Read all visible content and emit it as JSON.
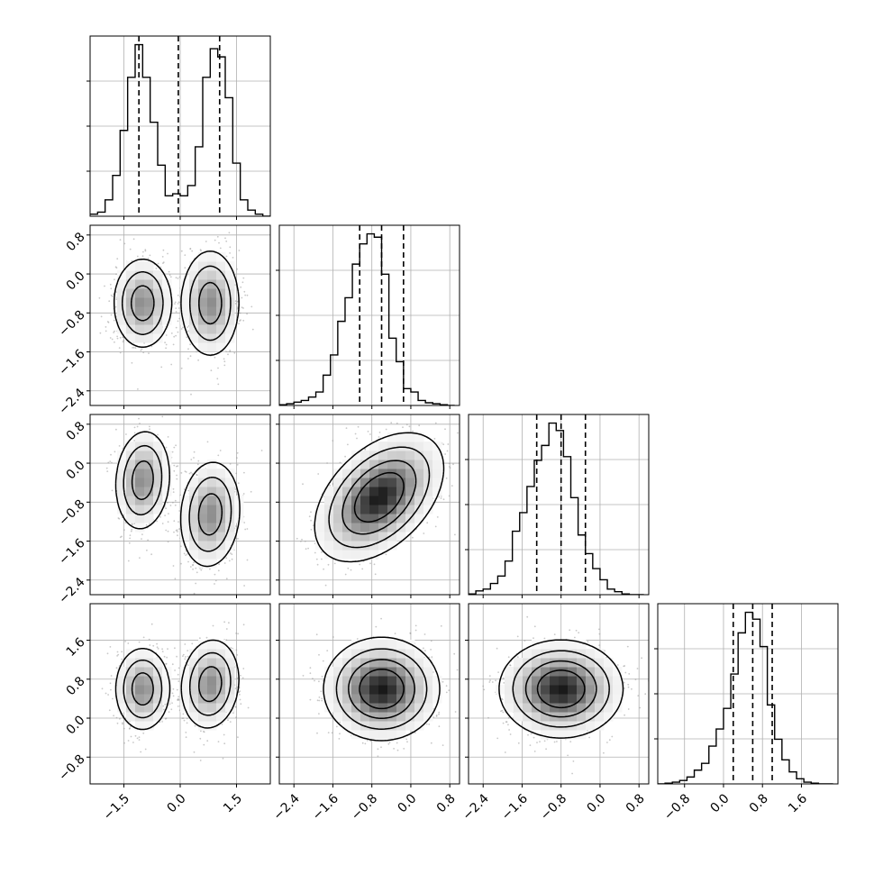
{
  "chart_data": {
    "type": "corner",
    "parameters": 4,
    "axes": [
      {
        "index": 0,
        "range": [
          -2.4,
          2.4
        ],
        "x_tick_labels": [
          {
            "value": -1.5,
            "label": "−1.5"
          },
          {
            "value": 0.0,
            "label": "0.0"
          },
          {
            "value": 1.5,
            "label": "1.5"
          }
        ],
        "quantiles": [
          -1.1,
          -0.05,
          1.05
        ],
        "histogram": {
          "edges": [
            -2.4,
            -2.2,
            -2.0,
            -1.8,
            -1.6,
            -1.4,
            -1.2,
            -1.0,
            -0.8,
            -0.6,
            -0.4,
            -0.2,
            0.0,
            0.2,
            0.4,
            0.6,
            0.8,
            1.0,
            1.2,
            1.4,
            1.6,
            1.8,
            2.0,
            2.2,
            2.4
          ],
          "counts": [
            0.05,
            0.1,
            0.4,
            1.0,
            2.1,
            3.4,
            4.2,
            3.4,
            2.3,
            1.25,
            0.5,
            0.55,
            0.5,
            0.75,
            1.7,
            3.4,
            4.1,
            3.9,
            2.9,
            1.3,
            0.4,
            0.15,
            0.05,
            0.0
          ]
        },
        "modes": [
          {
            "center": -1.0
          },
          {
            "center": 0.8
          }
        ]
      },
      {
        "index": 1,
        "range": [
          -2.7,
          1.0
        ],
        "y_tick_labels": [
          {
            "value": 0.8,
            "label": "0.8"
          },
          {
            "value": 0.0,
            "label": "0.0"
          },
          {
            "value": -0.8,
            "label": "−0.8"
          },
          {
            "value": -1.6,
            "label": "−1.6"
          },
          {
            "value": -2.4,
            "label": "−2.4"
          }
        ],
        "x_tick_labels": [
          {
            "value": -2.4,
            "label": "−2.4"
          },
          {
            "value": -1.6,
            "label": "−1.6"
          },
          {
            "value": -0.8,
            "label": "−0.8"
          },
          {
            "value": 0.0,
            "label": "0.0"
          },
          {
            "value": 0.8,
            "label": "0.8"
          }
        ],
        "quantiles": [
          -1.05,
          -0.6,
          -0.15
        ],
        "histogram": {
          "edges": [
            -2.7,
            -2.55,
            -2.4,
            -2.25,
            -2.1,
            -1.95,
            -1.8,
            -1.65,
            -1.5,
            -1.35,
            -1.2,
            -1.05,
            -0.9,
            -0.75,
            -0.6,
            -0.45,
            -0.3,
            -0.15,
            0.0,
            0.15,
            0.3,
            0.45,
            0.6,
            0.75,
            0.9
          ],
          "counts": [
            0.02,
            0.05,
            0.1,
            0.15,
            0.25,
            0.4,
            0.9,
            1.5,
            2.5,
            3.2,
            4.2,
            4.8,
            5.1,
            5.0,
            3.9,
            2.0,
            1.3,
            0.5,
            0.4,
            0.15,
            0.08,
            0.05,
            0.02,
            0.0
          ]
        }
      },
      {
        "index": 2,
        "range": [
          -2.7,
          1.0
        ],
        "y_tick_labels": [
          {
            "value": 0.8,
            "label": "0.8"
          },
          {
            "value": 0.0,
            "label": "0.0"
          },
          {
            "value": -0.8,
            "label": "−0.8"
          },
          {
            "value": -1.6,
            "label": "−1.6"
          },
          {
            "value": -2.4,
            "label": "−2.4"
          }
        ],
        "x_tick_labels": [
          {
            "value": -2.4,
            "label": "−2.4"
          },
          {
            "value": -1.6,
            "label": "−1.6"
          },
          {
            "value": -0.8,
            "label": "−0.8"
          },
          {
            "value": 0.0,
            "label": "0.0"
          },
          {
            "value": 0.8,
            "label": "0.8"
          }
        ],
        "quantiles": [
          -1.3,
          -0.8,
          -0.3
        ],
        "histogram": {
          "edges": [
            -2.7,
            -2.55,
            -2.4,
            -2.25,
            -2.1,
            -1.95,
            -1.8,
            -1.65,
            -1.5,
            -1.35,
            -1.2,
            -1.05,
            -0.9,
            -0.75,
            -0.6,
            -0.45,
            -0.3,
            -0.15,
            0.0,
            0.15,
            0.3,
            0.45,
            0.6,
            0.75,
            0.9
          ],
          "counts": [
            0.02,
            0.1,
            0.15,
            0.3,
            0.5,
            0.9,
            1.7,
            2.2,
            2.9,
            3.6,
            4.0,
            4.6,
            4.4,
            3.7,
            2.6,
            1.6,
            1.1,
            0.7,
            0.4,
            0.15,
            0.08,
            0.02,
            0.0,
            0.0
          ]
        }
      },
      {
        "index": 3,
        "range": [
          -1.35,
          2.35
        ],
        "y_tick_labels": [
          {
            "value": 1.6,
            "label": "1.6"
          },
          {
            "value": 0.8,
            "label": "0.8"
          },
          {
            "value": 0.0,
            "label": "0.0"
          },
          {
            "value": -0.8,
            "label": "−0.8"
          }
        ],
        "x_tick_labels": [
          {
            "value": -0.8,
            "label": "−0.8"
          },
          {
            "value": 0.0,
            "label": "0.0"
          },
          {
            "value": 0.8,
            "label": "0.8"
          },
          {
            "value": 1.6,
            "label": "1.6"
          }
        ],
        "quantiles": [
          0.2,
          0.6,
          1.0
        ],
        "histogram": {
          "edges": [
            -1.35,
            -1.2,
            -1.05,
            -0.9,
            -0.75,
            -0.6,
            -0.45,
            -0.3,
            -0.15,
            0.0,
            0.15,
            0.3,
            0.45,
            0.6,
            0.75,
            0.9,
            1.05,
            1.2,
            1.35,
            1.5,
            1.65,
            1.8,
            1.95,
            2.1,
            2.25
          ],
          "counts": [
            0.0,
            0.02,
            0.05,
            0.1,
            0.2,
            0.4,
            0.6,
            1.1,
            1.6,
            2.2,
            3.2,
            4.4,
            5.0,
            4.8,
            4.0,
            2.3,
            1.3,
            0.7,
            0.35,
            0.15,
            0.05,
            0.02,
            0.0,
            0.0
          ]
        }
      }
    ],
    "joint_panels": [
      {
        "row": 1,
        "col": 0,
        "modes": [
          {
            "mx": -1.0,
            "my": -0.6,
            "sx": 0.32,
            "sy": 0.38,
            "rho": 0.0
          },
          {
            "mx": 0.8,
            "my": -0.6,
            "sx": 0.32,
            "sy": 0.45,
            "rho": 0.0
          }
        ]
      },
      {
        "row": 2,
        "col": 0,
        "modes": [
          {
            "mx": -1.0,
            "my": -0.35,
            "sx": 0.3,
            "sy": 0.42,
            "rho": 0.1
          },
          {
            "mx": 0.8,
            "my": -1.05,
            "sx": 0.33,
            "sy": 0.45,
            "rho": 0.1
          }
        ]
      },
      {
        "row": 3,
        "col": 0,
        "modes": [
          {
            "mx": -1.0,
            "my": 0.6,
            "sx": 0.3,
            "sy": 0.35,
            "rho": 0.0
          },
          {
            "mx": 0.8,
            "my": 0.7,
            "sx": 0.32,
            "sy": 0.38,
            "rho": 0.1
          }
        ]
      },
      {
        "row": 2,
        "col": 1,
        "modes": [
          {
            "mx": -0.65,
            "my": -0.7,
            "sx": 0.5,
            "sy": 0.5,
            "rho": 0.45
          }
        ]
      },
      {
        "row": 3,
        "col": 1,
        "modes": [
          {
            "mx": -0.6,
            "my": 0.6,
            "sx": 0.45,
            "sy": 0.4,
            "rho": 0.0
          }
        ]
      },
      {
        "row": 3,
        "col": 2,
        "modes": [
          {
            "mx": -0.8,
            "my": 0.6,
            "sx": 0.48,
            "sy": 0.38,
            "rho": 0.0
          }
        ]
      }
    ],
    "contour_levels": [
      0.6,
      0.32,
      0.12,
      0.03
    ],
    "grid": true
  }
}
